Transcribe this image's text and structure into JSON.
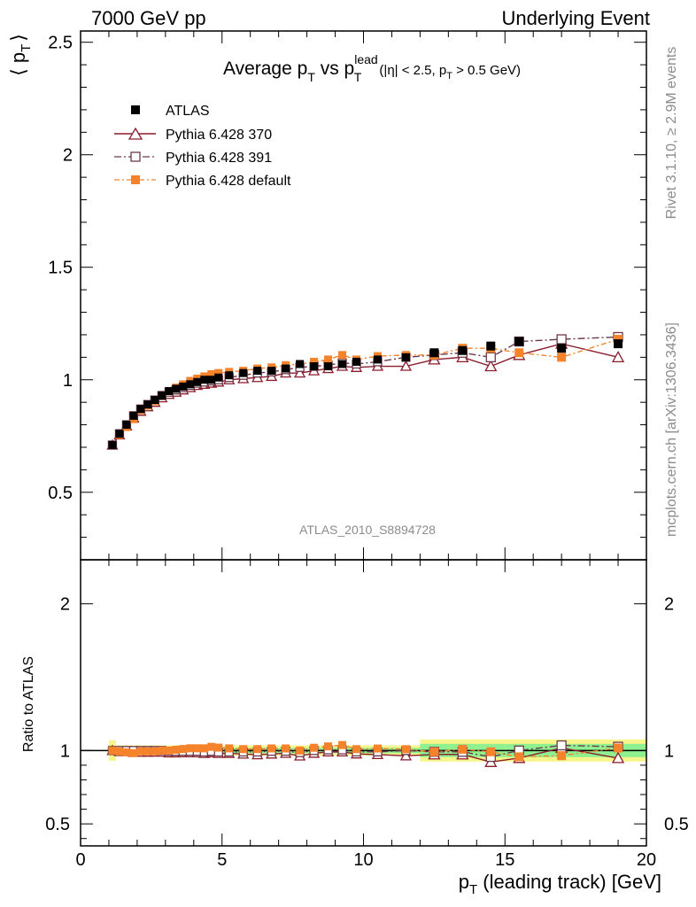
{
  "header": {
    "left": "7000 GeV pp",
    "right": "Underlying Event"
  },
  "side": {
    "rivet": "Rivet 3.1.10, ≥ 2.9M events",
    "mcplots": "mcplots.cern.ch [arXiv:1306.3436]"
  },
  "chart_data": {
    "type": "scatter",
    "title": {
      "main": "Average p",
      "sub1": "T",
      "vs": " vs p",
      "sup": "lead",
      "sub2": "T",
      "cuts_a": " (|η| < 2.5, p",
      "cuts_sub": "T",
      "cuts_b": " > 0.5 GeV)"
    },
    "analysis_label": "ATLAS_2010_S8894728",
    "ylabel": {
      "open": "⟨ p",
      "sub": "T",
      "close": "⟩"
    },
    "ratio_ylabel": "Ratio to ATLAS",
    "xlabel": {
      "p": "p",
      "sub": "T",
      "rest": " (leading track) [GeV]"
    },
    "xlim": [
      0,
      20
    ],
    "ylim": [
      0.2,
      2.55
    ],
    "ratio_ylim": [
      0.35,
      2.3
    ],
    "x_ticks": [
      "0",
      "5",
      "10",
      "15",
      "20"
    ],
    "y_ticks": [
      "0.5",
      "1",
      "1.5",
      "2",
      "2.5"
    ],
    "ratio_y_ticks": [
      "0.5",
      "1",
      "2"
    ],
    "legend": [
      "ATLAS",
      "Pythia 6.428 370",
      "Pythia 6.428 391",
      "Pythia 6.428 default"
    ],
    "colors": {
      "atlas": "#000000",
      "p370": "#8a1c2c",
      "p391": "#6b3a4a",
      "pdefault": "#f5832b",
      "band_inner": "#8ff08f",
      "band_outer": "#f5f58a"
    },
    "x": [
      1.125,
      1.375,
      1.625,
      1.875,
      2.125,
      2.375,
      2.625,
      2.875,
      3.125,
      3.375,
      3.625,
      3.875,
      4.125,
      4.375,
      4.625,
      4.875,
      5.25,
      5.75,
      6.25,
      6.75,
      7.25,
      7.75,
      8.25,
      8.75,
      9.25,
      9.75,
      10.5,
      11.5,
      12.5,
      13.5,
      14.5,
      15.5,
      17.0,
      19.0
    ],
    "series": [
      {
        "name": "ATLAS",
        "values": [
          0.71,
          0.76,
          0.8,
          0.84,
          0.87,
          0.89,
          0.91,
          0.93,
          0.95,
          0.96,
          0.97,
          0.98,
          0.99,
          1.0,
          1.0,
          1.01,
          1.02,
          1.03,
          1.04,
          1.04,
          1.05,
          1.07,
          1.06,
          1.06,
          1.07,
          1.08,
          1.09,
          1.1,
          1.12,
          1.13,
          1.15,
          1.17,
          1.14,
          1.16
        ]
      },
      {
        "name": "Pythia 6.428 370",
        "values": [
          0.71,
          0.755,
          0.795,
          0.83,
          0.86,
          0.88,
          0.9,
          0.92,
          0.935,
          0.945,
          0.955,
          0.965,
          0.975,
          0.98,
          0.985,
          0.99,
          1.0,
          1.005,
          1.01,
          1.015,
          1.03,
          1.03,
          1.04,
          1.05,
          1.06,
          1.055,
          1.06,
          1.06,
          1.09,
          1.1,
          1.06,
          1.11,
          1.16,
          1.1
        ]
      },
      {
        "name": "Pythia 6.428 391",
        "values": [
          0.71,
          0.76,
          0.8,
          0.84,
          0.87,
          0.89,
          0.91,
          0.93,
          0.945,
          0.955,
          0.965,
          0.975,
          0.985,
          0.99,
          0.995,
          1.0,
          1.01,
          1.02,
          1.03,
          1.035,
          1.045,
          1.055,
          1.06,
          1.065,
          1.075,
          1.07,
          1.08,
          1.1,
          1.11,
          1.12,
          1.1,
          1.17,
          1.18,
          1.19
        ]
      },
      {
        "name": "Pythia 6.428 default",
        "values": [
          0.71,
          0.755,
          0.79,
          0.825,
          0.865,
          0.885,
          0.905,
          0.93,
          0.95,
          0.965,
          0.98,
          0.995,
          1.005,
          1.015,
          1.025,
          1.03,
          1.035,
          1.04,
          1.05,
          1.055,
          1.065,
          1.07,
          1.08,
          1.09,
          1.11,
          1.09,
          1.105,
          1.11,
          1.11,
          1.14,
          1.14,
          1.12,
          1.1,
          1.18
        ]
      }
    ]
  }
}
